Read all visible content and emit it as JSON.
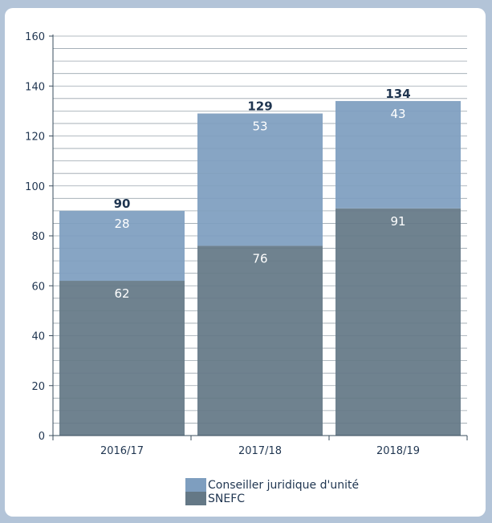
{
  "chart_data": {
    "type": "bar",
    "stacked": true,
    "categories": [
      "2016/17",
      "2017/18",
      "2018/19"
    ],
    "series": [
      {
        "name": "SNEFC",
        "values": [
          62,
          76,
          91
        ],
        "color": "#647886"
      },
      {
        "name": "Conseiller juridique d'unité",
        "values": [
          28,
          53,
          43
        ],
        "color": "#7e9ebf"
      }
    ],
    "totals": [
      90,
      129,
      134
    ],
    "title": "",
    "xlabel": "",
    "ylabel": "",
    "ylim": [
      0,
      160
    ],
    "yticks": [
      0,
      20,
      40,
      60,
      80,
      100,
      120,
      140,
      160
    ],
    "grid": true,
    "legend_position": "bottom"
  }
}
